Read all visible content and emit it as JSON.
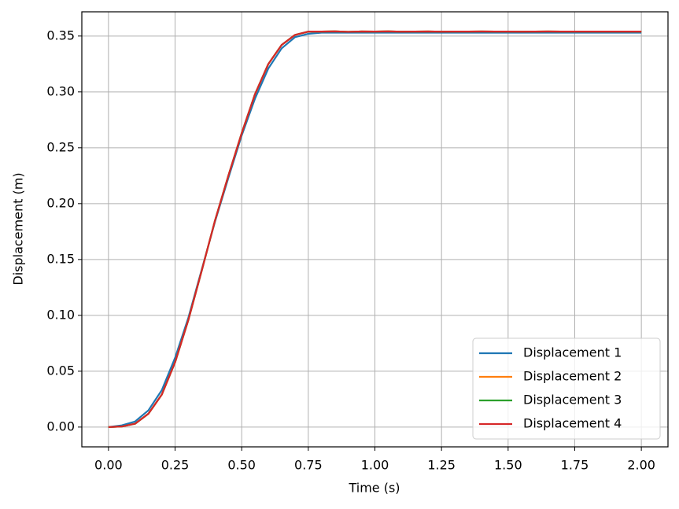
{
  "chart_data": {
    "type": "line",
    "x_label": "Time (s)",
    "y_label": "Displacement (m)",
    "x": [
      0,
      0.05,
      0.1,
      0.15,
      0.2,
      0.25,
      0.3,
      0.35,
      0.4,
      0.45,
      0.5,
      0.55,
      0.6,
      0.65,
      0.7,
      0.75,
      0.8,
      0.85,
      0.9,
      0.95,
      1.0,
      1.05,
      1.1,
      1.15,
      1.2,
      1.25,
      1.3,
      1.35,
      1.4,
      1.45,
      1.5,
      1.55,
      1.6,
      1.65,
      1.7,
      1.75,
      1.8,
      1.85,
      1.9,
      1.95,
      2.0
    ],
    "series": [
      {
        "name": "Displacement 1",
        "color": "#1f77b4",
        "values": [
          0,
          0.0015,
          0.005,
          0.015,
          0.033,
          0.062,
          0.098,
          0.141,
          0.184,
          0.223,
          0.261,
          0.294,
          0.321,
          0.339,
          0.349,
          0.352,
          0.353,
          0.353,
          0.353,
          0.353,
          0.353,
          0.353,
          0.353,
          0.353,
          0.353,
          0.353,
          0.353,
          0.353,
          0.353,
          0.353,
          0.353,
          0.353,
          0.353,
          0.353,
          0.353,
          0.353,
          0.353,
          0.353,
          0.353,
          0.353,
          0.353
        ]
      },
      {
        "name": "Displacement 2",
        "color": "#ff7f0e",
        "values": [
          0,
          0.0005,
          0.003,
          0.012,
          0.029,
          0.058,
          0.096,
          0.14,
          0.185,
          0.225,
          0.263,
          0.298,
          0.325,
          0.342,
          0.351,
          0.354,
          0.354,
          0.3542,
          0.3538,
          0.3541,
          0.354,
          0.3542,
          0.3539,
          0.354,
          0.3541,
          0.3539,
          0.354,
          0.354,
          0.3541,
          0.354,
          0.354,
          0.3539,
          0.354,
          0.3541,
          0.354,
          0.354,
          0.354,
          0.354,
          0.354,
          0.354,
          0.354
        ]
      },
      {
        "name": "Displacement 3",
        "color": "#2ca02c",
        "values": [
          0,
          0.0005,
          0.003,
          0.012,
          0.029,
          0.058,
          0.096,
          0.14,
          0.185,
          0.225,
          0.263,
          0.298,
          0.325,
          0.342,
          0.351,
          0.354,
          0.354,
          0.3542,
          0.3538,
          0.3541,
          0.354,
          0.3542,
          0.3539,
          0.354,
          0.3541,
          0.3539,
          0.354,
          0.354,
          0.3541,
          0.354,
          0.354,
          0.3539,
          0.354,
          0.3541,
          0.354,
          0.354,
          0.354,
          0.354,
          0.354,
          0.354,
          0.354
        ]
      },
      {
        "name": "Displacement 4",
        "color": "#d62728",
        "values": [
          0,
          0.0005,
          0.003,
          0.012,
          0.029,
          0.058,
          0.096,
          0.14,
          0.185,
          0.225,
          0.263,
          0.298,
          0.325,
          0.342,
          0.351,
          0.354,
          0.354,
          0.3542,
          0.3538,
          0.3541,
          0.354,
          0.3542,
          0.3539,
          0.354,
          0.3541,
          0.3539,
          0.354,
          0.354,
          0.3541,
          0.354,
          0.354,
          0.3539,
          0.354,
          0.3541,
          0.354,
          0.354,
          0.354,
          0.354,
          0.354,
          0.354,
          0.354
        ]
      }
    ],
    "xlim": [
      -0.1,
      2.1
    ],
    "ylim": [
      -0.0177,
      0.3717
    ],
    "xticks": [
      {
        "value": 0,
        "label": "0.00"
      },
      {
        "value": 0.25,
        "label": "0.25"
      },
      {
        "value": 0.5,
        "label": "0.50"
      },
      {
        "value": 0.75,
        "label": "0.75"
      },
      {
        "value": 1.0,
        "label": "1.00"
      },
      {
        "value": 1.25,
        "label": "1.25"
      },
      {
        "value": 1.5,
        "label": "1.50"
      },
      {
        "value": 1.75,
        "label": "1.75"
      },
      {
        "value": 2.0,
        "label": "2.00"
      }
    ],
    "yticks": [
      {
        "value": 0,
        "label": "0.00"
      },
      {
        "value": 0.05,
        "label": "0.05"
      },
      {
        "value": 0.1,
        "label": "0.10"
      },
      {
        "value": 0.15,
        "label": "0.15"
      },
      {
        "value": 0.2,
        "label": "0.20"
      },
      {
        "value": 0.25,
        "label": "0.25"
      },
      {
        "value": 0.3,
        "label": "0.30"
      },
      {
        "value": 0.35,
        "label": "0.35"
      }
    ],
    "grid": true,
    "legend": "lower right"
  }
}
